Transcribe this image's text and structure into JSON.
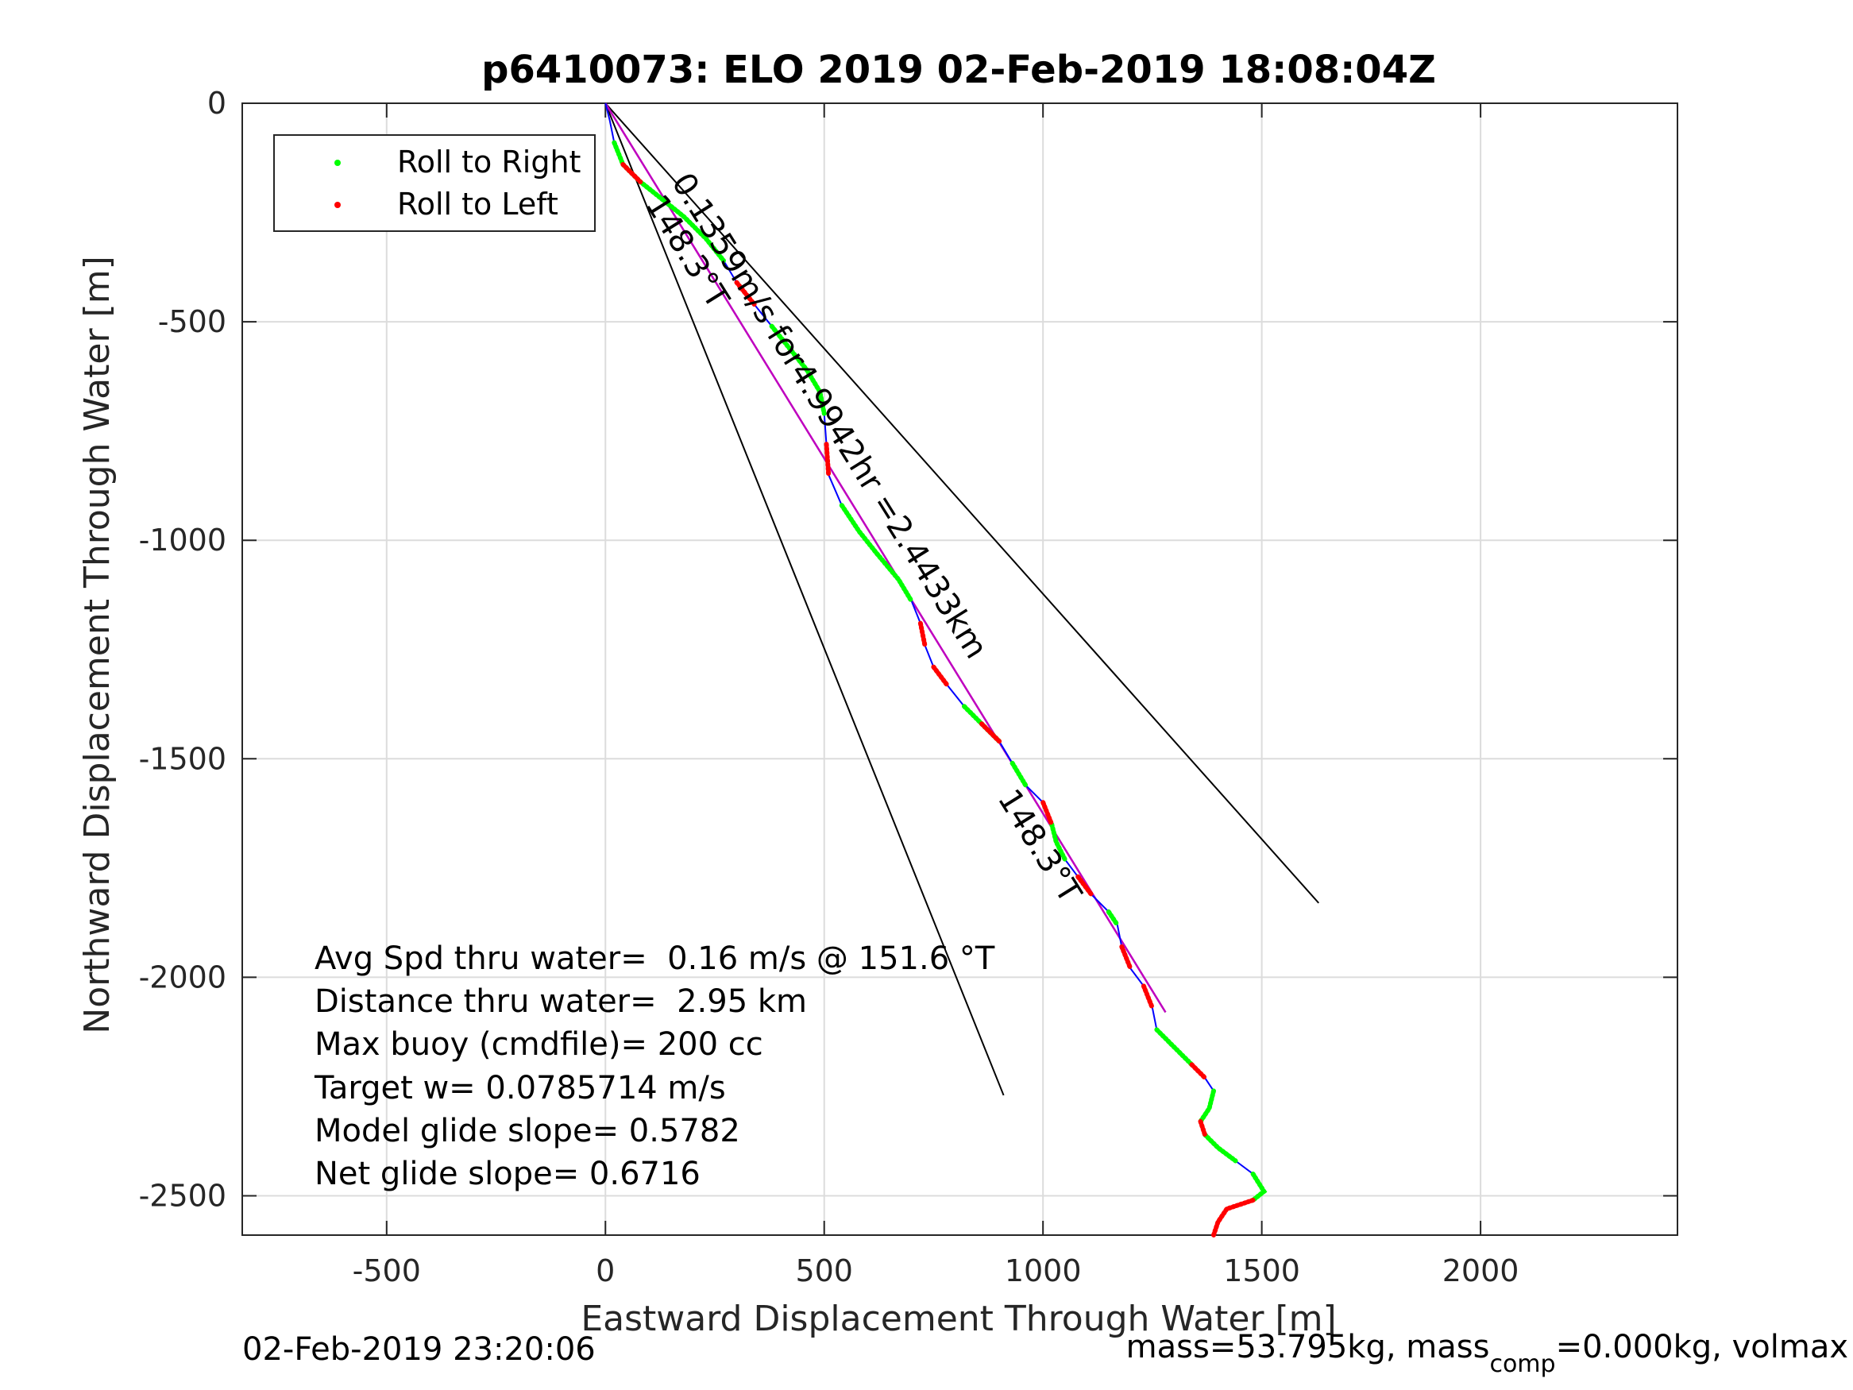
{
  "chart_data": {
    "type": "line",
    "title": "p6410073: ELO 2019 02-Feb-2019 18:08:04Z",
    "xlabel": "Eastward Displacement Through Water [m]",
    "ylabel": "Northward Displacement Through Water [m]",
    "xlim": [
      -830,
      2450
    ],
    "ylim": [
      -2590,
      0
    ],
    "xticks": [
      -500,
      0,
      500,
      1000,
      1500,
      2000
    ],
    "yticks": [
      0,
      -500,
      -1000,
      -1500,
      -2000,
      -2500
    ],
    "xtick_labels": [
      "-500",
      "0",
      "500",
      "1000",
      "1500",
      "2000"
    ],
    "ytick_labels": [
      "0",
      "-500",
      "-1000",
      "-1500",
      "-2000",
      "-2500"
    ],
    "grid": true,
    "legend": {
      "placement": "top-left",
      "entries": [
        {
          "label": "Roll to Right",
          "color": "#00ff00"
        },
        {
          "label": "Roll to Left",
          "color": "#ff0000"
        }
      ]
    },
    "track": {
      "color": "#0000ff",
      "points": [
        [
          0,
          0
        ],
        [
          10,
          -40
        ],
        [
          20,
          -90
        ],
        [
          40,
          -140
        ],
        [
          80,
          -180
        ],
        [
          130,
          -220
        ],
        [
          180,
          -260
        ],
        [
          230,
          -310
        ],
        [
          270,
          -360
        ],
        [
          300,
          -410
        ],
        [
          340,
          -460
        ],
        [
          380,
          -510
        ],
        [
          420,
          -560
        ],
        [
          460,
          -610
        ],
        [
          490,
          -660
        ],
        [
          500,
          -710
        ],
        [
          505,
          -780
        ],
        [
          510,
          -850
        ],
        [
          540,
          -920
        ],
        [
          580,
          -980
        ],
        [
          620,
          -1030
        ],
        [
          670,
          -1090
        ],
        [
          700,
          -1140
        ],
        [
          720,
          -1190
        ],
        [
          730,
          -1240
        ],
        [
          750,
          -1290
        ],
        [
          780,
          -1330
        ],
        [
          820,
          -1380
        ],
        [
          860,
          -1420
        ],
        [
          900,
          -1460
        ],
        [
          930,
          -1510
        ],
        [
          960,
          -1560
        ],
        [
          1000,
          -1600
        ],
        [
          1020,
          -1650
        ],
        [
          1030,
          -1690
        ],
        [
          1050,
          -1730
        ],
        [
          1080,
          -1770
        ],
        [
          1110,
          -1810
        ],
        [
          1150,
          -1850
        ],
        [
          1170,
          -1880
        ],
        [
          1180,
          -1930
        ],
        [
          1200,
          -1980
        ],
        [
          1230,
          -2020
        ],
        [
          1250,
          -2070
        ],
        [
          1260,
          -2120
        ],
        [
          1300,
          -2160
        ],
        [
          1340,
          -2200
        ],
        [
          1370,
          -2230
        ],
        [
          1390,
          -2260
        ],
        [
          1380,
          -2300
        ],
        [
          1360,
          -2330
        ],
        [
          1370,
          -2360
        ],
        [
          1400,
          -2390
        ],
        [
          1440,
          -2420
        ],
        [
          1480,
          -2450
        ],
        [
          1505,
          -2490
        ],
        [
          1480,
          -2510
        ],
        [
          1420,
          -2530
        ],
        [
          1400,
          -2560
        ],
        [
          1390,
          -2590
        ]
      ],
      "roll_right_segments": [
        [
          2,
          8
        ],
        [
          11,
          15
        ],
        [
          18,
          22
        ],
        [
          27,
          29
        ],
        [
          30,
          31
        ],
        [
          33,
          35
        ],
        [
          38,
          39
        ],
        [
          44,
          46
        ],
        [
          48,
          50
        ],
        [
          51,
          53
        ],
        [
          54,
          56
        ]
      ],
      "roll_left_segments": [
        [
          3,
          4
        ],
        [
          9,
          10
        ],
        [
          16,
          17
        ],
        [
          23,
          24
        ],
        [
          25,
          26
        ],
        [
          28,
          29
        ],
        [
          32,
          33
        ],
        [
          36,
          37
        ],
        [
          40,
          41
        ],
        [
          42,
          43
        ],
        [
          46,
          47
        ],
        [
          50,
          51
        ],
        [
          56,
          59
        ]
      ]
    },
    "heading_line": {
      "color": "#c000c0",
      "points": [
        [
          0,
          0
        ],
        [
          1280,
          -2080
        ]
      ]
    },
    "wedge_lines": [
      {
        "points": [
          [
            0,
            0
          ],
          [
            910,
            -2270
          ]
        ]
      },
      {
        "points": [
          [
            0,
            0
          ],
          [
            1630,
            -1830
          ]
        ]
      },
      {
        "points": [
          [
            0,
            0
          ],
          [
            1280,
            -2080
          ]
        ]
      }
    ],
    "line_labels": [
      {
        "text": "0.1359m/s for4.9942hr =2.4433km",
        "at": [
          150,
          -180
        ],
        "angle": 58
      },
      {
        "text": "148.3°T",
        "at": [
          90,
          -230
        ],
        "angle": 58
      },
      {
        "text": "148.3°T",
        "at": [
          895,
          -1590
        ],
        "angle": 58
      }
    ],
    "annotations": [
      "Avg Spd thru water=  0.16 m/s @ 151.6 °T",
      "Distance thru water=  2.95 km",
      "Max buoy (cmdfile)= 200 cc",
      "Target w= 0.0785714 m/s",
      "Model glide slope= 0.5782",
      "Net glide slope= 0.6716"
    ]
  },
  "footer": {
    "timestamp": "02-Feb-2019 23:20:06",
    "mass_text": "mass=53.795kg, mass",
    "mass_sub": "comp",
    "mass_tail": "=0.000kg, volmax"
  }
}
